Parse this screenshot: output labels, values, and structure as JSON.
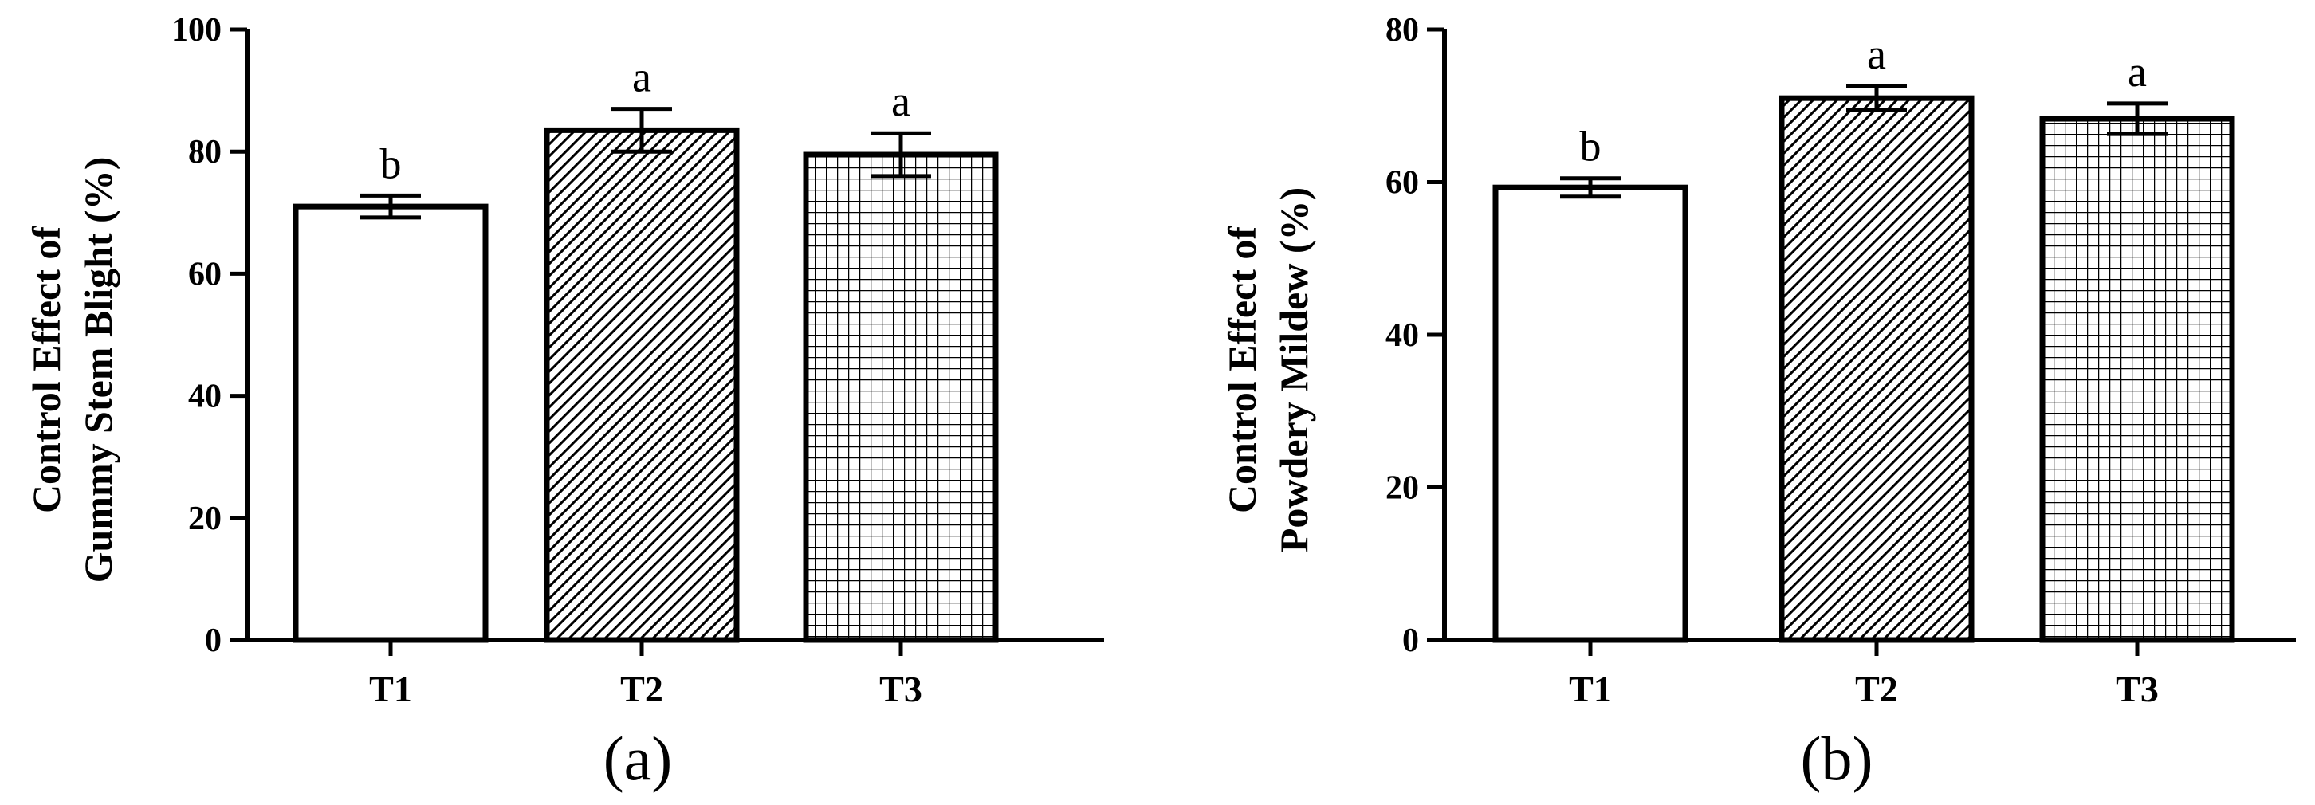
{
  "chart_data": [
    {
      "type": "bar",
      "panel": "(a)",
      "categories": [
        "T1",
        "T2",
        "T3"
      ],
      "values": [
        71,
        83.5,
        79.5
      ],
      "errors": [
        1.8,
        3.5,
        3.5
      ],
      "significance": [
        "b",
        "a",
        "a"
      ],
      "patterns": [
        "none",
        "diagonal",
        "grid"
      ],
      "ylabel_lines": [
        "Control Effect of",
        "Gummy Stem Blight  (%)"
      ],
      "xlabel": "",
      "ylim": [
        0,
        100
      ],
      "yticks": [
        0,
        20,
        40,
        60,
        80,
        100
      ],
      "grid": false
    },
    {
      "type": "bar",
      "panel": "(b)",
      "categories": [
        "T1",
        "T2",
        "T3"
      ],
      "values": [
        59.3,
        71,
        68.3
      ],
      "errors": [
        1.2,
        1.6,
        2.0
      ],
      "significance": [
        "b",
        "a",
        "a"
      ],
      "patterns": [
        "none",
        "diagonal",
        "grid"
      ],
      "ylabel_lines": [
        "Control Effect of",
        "Powdery Mildew (%)"
      ],
      "xlabel": "",
      "ylim": [
        0,
        80
      ],
      "yticks": [
        0,
        20,
        40,
        60,
        80
      ],
      "grid": false
    }
  ],
  "colors": {
    "bar_fill": "#ffffff",
    "ink": "#000000"
  }
}
